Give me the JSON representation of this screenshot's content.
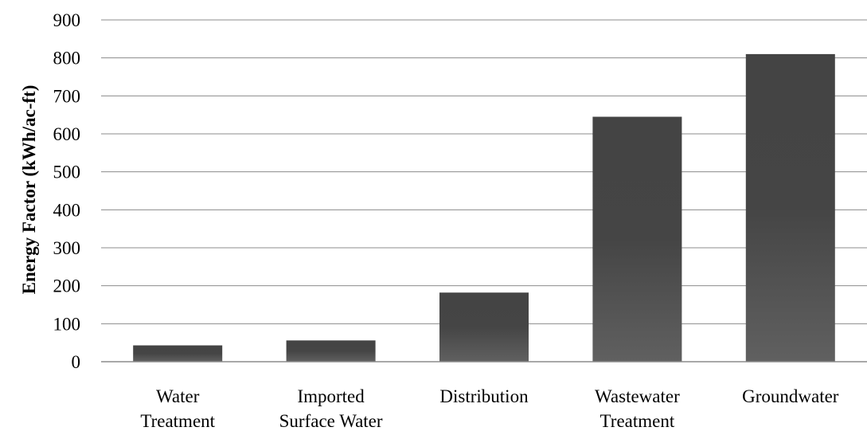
{
  "chart_data": {
    "type": "bar",
    "title": "",
    "xlabel": "",
    "ylabel": "Energy Factor (kWh/ac-ft)",
    "ylim": [
      0,
      900
    ],
    "yticks": [
      0,
      100,
      200,
      300,
      400,
      500,
      600,
      700,
      800,
      900
    ],
    "grid": true,
    "legend": "none",
    "categories": [
      [
        "Water",
        "Treatment"
      ],
      [
        "Imported",
        "Surface Water"
      ],
      [
        "Distribution"
      ],
      [
        "Wastewater",
        "Treatment"
      ],
      [
        "Groundwater"
      ]
    ],
    "values": [
      43,
      56,
      182,
      645,
      810
    ],
    "colors": {
      "bar_top": "#444444",
      "bar_bottom": "#606060",
      "grid": "#8c8c8c",
      "axis": "#8c8c8c"
    }
  }
}
